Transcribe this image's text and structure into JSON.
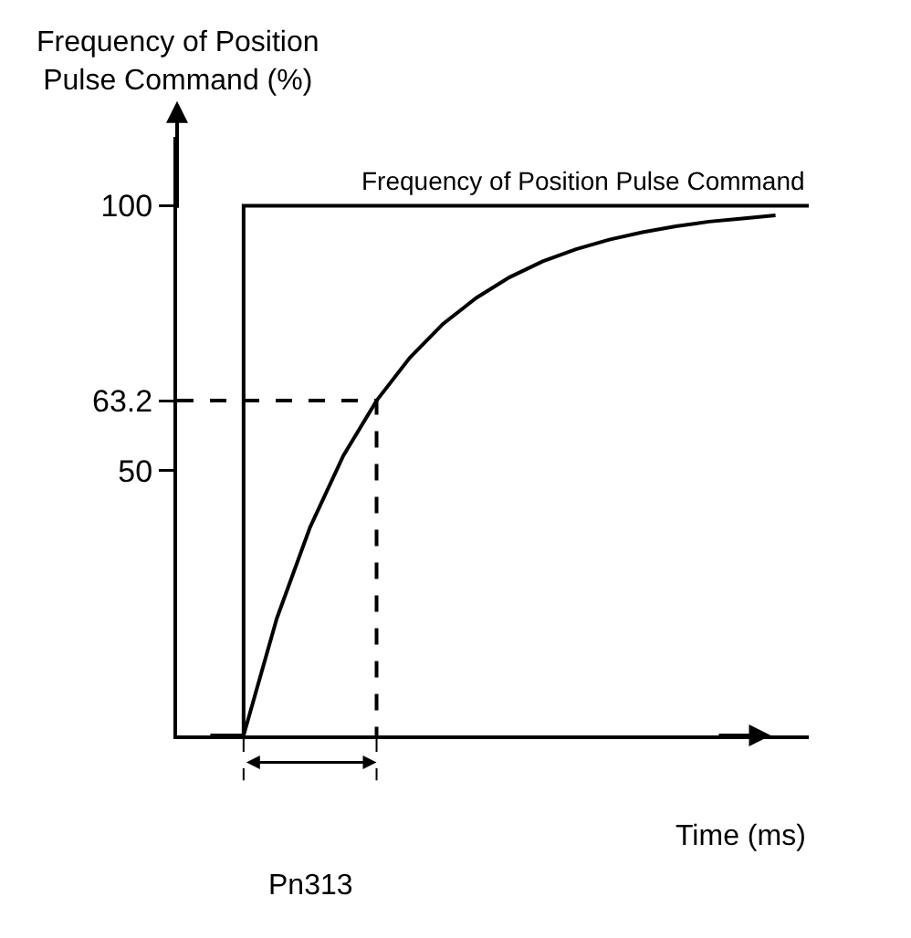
{
  "chart_data": {
    "type": "line",
    "xlabel": "Time (ms)",
    "ylabel": "Frequency of Position\nPulse Command (%)",
    "categories": [
      null,
      null,
      null,
      null,
      null,
      null,
      null,
      null,
      null,
      null,
      null,
      null,
      null,
      null,
      null,
      null,
      null,
      null,
      null,
      null
    ],
    "ylim": [
      0,
      113
    ],
    "yticks": [
      50,
      63.2,
      100
    ],
    "tick_labels": "y",
    "grid": false,
    "legend": false,
    "marker": "none",
    "series": [
      {
        "name": "Frequency of Position Pulse Command",
        "type": "step",
        "color": "#000000",
        "line_style": "solid",
        "values": [
          null,
          0,
          100,
          100,
          100,
          100,
          100,
          100,
          100,
          100,
          100,
          100,
          100,
          100,
          100,
          100,
          100,
          100,
          100,
          100
        ]
      },
      {
        "color": "#000000",
        "line_style": "solid",
        "values": [
          null,
          null,
          0,
          22.1,
          39.3,
          52.8,
          63.2,
          71.3,
          77.7,
          82.6,
          86.5,
          89.5,
          91.8,
          93.6,
          95.0,
          96.1,
          97.0,
          97.6,
          98.2,
          null
        ]
      },
      {
        "type": "step",
        "color": "#000000",
        "line_style": "dashed",
        "values": [
          63.2,
          63.2,
          63.2,
          63.2,
          63.2,
          63.2,
          0,
          null,
          null,
          null,
          null,
          null,
          null,
          null,
          null,
          null,
          null,
          null,
          null,
          null
        ]
      }
    ],
    "annotations": [
      "Pn313"
    ]
  }
}
